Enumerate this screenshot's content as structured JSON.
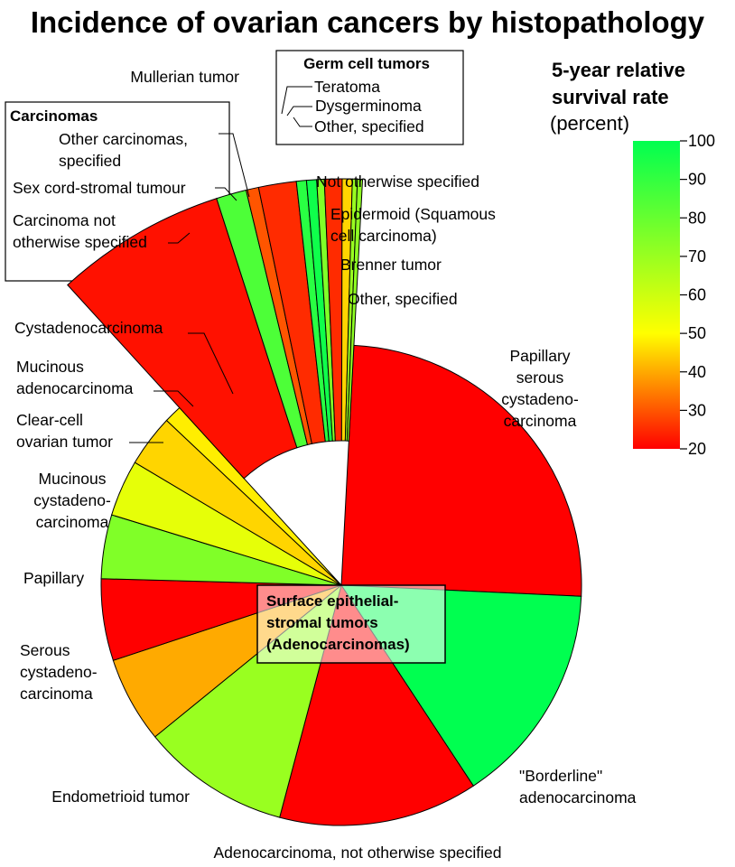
{
  "chart_data": {
    "type": "pie",
    "title": "Incidence of ovarian cancers by histopathology",
    "legend": {
      "title_line1": "5-year relative",
      "title_line2": "survival rate",
      "unit": "(percent)",
      "ticks": [
        "100",
        "90",
        "80",
        "70",
        "60",
        "50",
        "40",
        "30",
        "20"
      ],
      "range": [
        20,
        100
      ],
      "colors": [
        "#ff0000",
        "#ffff00",
        "#00ff50"
      ],
      "placement": "top-right"
    },
    "groups": {
      "main": "Surface epithelial-stromal tumors (Adenocarcinomas)",
      "carcinomas": "Carcinomas",
      "germ": "Germ cell tumors"
    },
    "slices": [
      {
        "label": "Papillary serous cystadeno- carcinoma",
        "share": 24.9,
        "survival": 20,
        "group": "main"
      },
      {
        "label": "\"Borderline\" adenocarcinoma",
        "share": 15.0,
        "survival": 100,
        "group": "main"
      },
      {
        "label": "Adenocarcinoma, not otherwise specified",
        "share": 13.4,
        "survival": 20,
        "group": "main"
      },
      {
        "label": "Endometrioid tumor",
        "share": 10.0,
        "survival": 70,
        "group": "main"
      },
      {
        "label": "Serous cystadeno- carcinoma",
        "share": 5.8,
        "survival": 40,
        "group": "main"
      },
      {
        "label": "Papillary",
        "share": 5.5,
        "survival": 20,
        "group": "main"
      },
      {
        "label": "Mucinous cystadeno- carcinoma",
        "share": 4.3,
        "survival": 75,
        "group": "main"
      },
      {
        "label": "Clear-cell ovarian tumor",
        "share": 3.8,
        "survival": 55,
        "group": "main"
      },
      {
        "label": "Mucinous adenocarcinoma",
        "share": 3.5,
        "survival": 45,
        "group": "main"
      },
      {
        "label": "Cystadenocarcinoma",
        "share": 1.2,
        "survival": 48,
        "group": "main"
      },
      {
        "label": "Carcinoma not otherwise specified",
        "share": 6.8,
        "survival": 22,
        "group": "carcinomas"
      },
      {
        "label": "Sex cord-stromal tumour",
        "share": 1.2,
        "survival": 85,
        "group": "carcinomas"
      },
      {
        "label": "Other carcinomas, specified",
        "share": 0.5,
        "survival": 30,
        "group": "carcinomas"
      },
      {
        "label": "Mullerian tumor",
        "share": 1.5,
        "survival": 25,
        "group": "other"
      },
      {
        "label": "Teratoma",
        "share": 0.4,
        "survival": 92,
        "group": "germ"
      },
      {
        "label": "Dysgerminoma",
        "share": 0.4,
        "survival": 97,
        "group": "germ"
      },
      {
        "label": "Other, specified",
        "share": 0.3,
        "survival": 75,
        "group": "germ"
      },
      {
        "label": "Not otherwise specified",
        "share": 0.7,
        "survival": 25,
        "group": "other"
      },
      {
        "label": "Epidermoid (Squamous cell carcinoma)",
        "share": 0.4,
        "survival": 45,
        "group": "other"
      },
      {
        "label": "Brenner tumor",
        "share": 0.2,
        "survival": 70,
        "group": "other"
      },
      {
        "label": "Other, specified",
        "share": 0.2,
        "survival": 72,
        "group": "other"
      }
    ]
  }
}
